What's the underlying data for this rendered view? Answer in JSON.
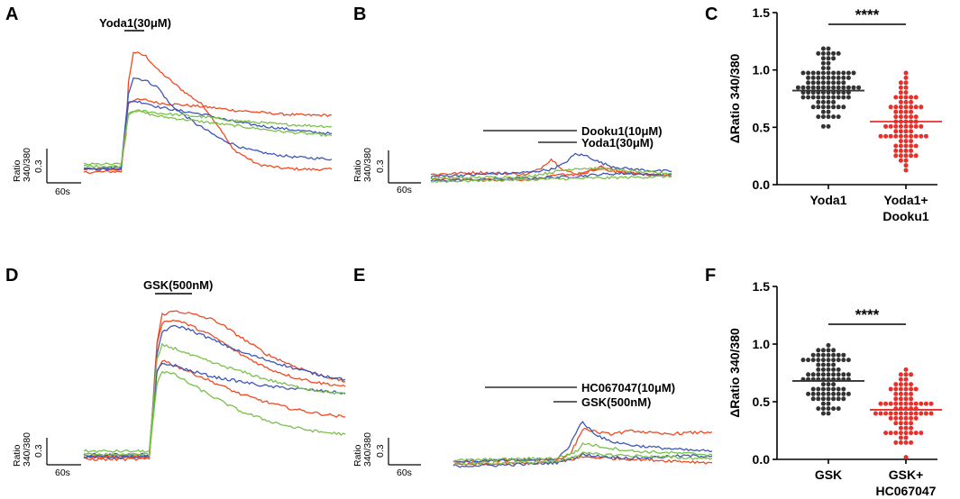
{
  "colors": {
    "orange": "#f04a23",
    "blue": "#3f57b6",
    "green": "#7cc04c",
    "dark": "#333333",
    "red": "#e8302a",
    "black": "#000000"
  },
  "panels": {
    "A": {
      "letter": "A",
      "drug": "Yoda1(30μM)",
      "scale_y_label_1": "Ratio",
      "scale_y_label_2": "340/380",
      "scale_value": "0.3",
      "scale_time": "60s"
    },
    "B": {
      "letter": "B",
      "drug_1": "Dooku1(10μM)",
      "drug_2": "Yoda1(30μM)",
      "scale_y_label_1": "Ratio",
      "scale_y_label_2": "340/380",
      "scale_value": "0.3",
      "scale_time": "60s"
    },
    "C": {
      "letter": "C"
    },
    "D": {
      "letter": "D",
      "drug": "GSK(500nM)",
      "scale_y_label_1": "Ratio",
      "scale_y_label_2": "340/380",
      "scale_value": "0.3",
      "scale_time": "60s"
    },
    "E": {
      "letter": "E",
      "drug_1": "HC067047(10μM)",
      "drug_2": "GSK(500nM)",
      "scale_y_label_1": "Ratio",
      "scale_y_label_2": "340/380",
      "scale_value": "0.3",
      "scale_time": "60s"
    },
    "F": {
      "letter": "F"
    }
  },
  "chart_data": [
    {
      "panel": "A",
      "type": "line",
      "title": "",
      "xlabel": "",
      "ylabel": "Ratio 340/380",
      "xlim": [
        0,
        100
      ],
      "ylim": [
        0,
        1.5
      ],
      "stimulus": "Yoda1(30μM)",
      "series": [
        {
          "name": "trace-orange-1",
          "color": "#f04a23",
          "x": [
            0,
            15,
            17,
            18,
            20,
            25,
            30,
            35,
            40,
            48,
            55,
            60,
            70,
            80,
            90,
            100
          ],
          "y": [
            0.15,
            0.15,
            0.5,
            1.0,
            1.3,
            1.26,
            1.12,
            1.02,
            0.92,
            0.78,
            0.55,
            0.35,
            0.2,
            0.16,
            0.15,
            0.15
          ]
        },
        {
          "name": "trace-orange-2",
          "color": "#f04a23",
          "x": [
            0,
            15,
            18,
            20,
            25,
            30,
            40,
            50,
            60,
            70,
            80,
            90,
            100
          ],
          "y": [
            0.12,
            0.13,
            0.8,
            0.83,
            0.83,
            0.8,
            0.78,
            0.76,
            0.73,
            0.71,
            0.69,
            0.68,
            0.68
          ]
        },
        {
          "name": "trace-blue-1",
          "color": "#3f57b6",
          "x": [
            0,
            15,
            18,
            20,
            25,
            30,
            35,
            45,
            55,
            65,
            75,
            85,
            100
          ],
          "y": [
            0.15,
            0.15,
            0.9,
            1.05,
            1.02,
            0.95,
            0.78,
            0.6,
            0.45,
            0.35,
            0.3,
            0.27,
            0.25
          ]
        },
        {
          "name": "trace-blue-2",
          "color": "#3f57b6",
          "x": [
            0,
            15,
            18,
            20,
            25,
            30,
            40,
            50,
            60,
            70,
            80,
            90,
            100
          ],
          "y": [
            0.16,
            0.17,
            0.8,
            0.82,
            0.8,
            0.76,
            0.72,
            0.68,
            0.62,
            0.58,
            0.55,
            0.52,
            0.5
          ]
        },
        {
          "name": "trace-green-1",
          "color": "#7cc04c",
          "x": [
            0,
            15,
            18,
            20,
            25,
            30,
            40,
            50,
            60,
            70,
            80,
            90,
            100
          ],
          "y": [
            0.18,
            0.18,
            0.7,
            0.73,
            0.7,
            0.67,
            0.64,
            0.61,
            0.58,
            0.55,
            0.52,
            0.5,
            0.48
          ]
        },
        {
          "name": "trace-green-2",
          "color": "#7cc04c",
          "x": [
            0,
            15,
            18,
            20,
            25,
            30,
            40,
            50,
            60,
            70,
            80,
            90,
            100
          ],
          "y": [
            0.2,
            0.2,
            0.68,
            0.72,
            0.72,
            0.7,
            0.68,
            0.66,
            0.63,
            0.61,
            0.59,
            0.58,
            0.57
          ]
        }
      ]
    },
    {
      "panel": "B",
      "type": "line",
      "title": "",
      "xlabel": "",
      "ylabel": "Ratio 340/380",
      "xlim": [
        0,
        100
      ],
      "ylim": [
        0,
        1.5
      ],
      "stimuli": [
        "Dooku1(10μM)",
        "Yoda1(30μM)"
      ],
      "series": [
        {
          "name": "trace-orange-1",
          "color": "#f04a23",
          "x": [
            0,
            20,
            40,
            45,
            50,
            55,
            60,
            65,
            70,
            80,
            90,
            100
          ],
          "y": [
            0.1,
            0.12,
            0.1,
            0.15,
            0.25,
            0.15,
            0.1,
            0.12,
            0.18,
            0.12,
            0.1,
            0.1
          ]
        },
        {
          "name": "trace-orange-2",
          "color": "#f04a23",
          "x": [
            0,
            20,
            40,
            45,
            50,
            55,
            60,
            70,
            80,
            90,
            100
          ],
          "y": [
            0.05,
            0.05,
            0.05,
            0.06,
            0.08,
            0.1,
            0.1,
            0.15,
            0.12,
            0.1,
            0.08
          ]
        },
        {
          "name": "trace-blue-1",
          "color": "#3f57b6",
          "x": [
            0,
            20,
            40,
            50,
            55,
            60,
            65,
            70,
            75,
            80,
            90,
            100
          ],
          "y": [
            0.08,
            0.1,
            0.12,
            0.15,
            0.2,
            0.3,
            0.28,
            0.22,
            0.18,
            0.16,
            0.14,
            0.13
          ]
        },
        {
          "name": "trace-blue-2",
          "color": "#3f57b6",
          "x": [
            0,
            20,
            40,
            60,
            70,
            80,
            90,
            100
          ],
          "y": [
            0.04,
            0.05,
            0.06,
            0.08,
            0.1,
            0.11,
            0.1,
            0.1
          ]
        },
        {
          "name": "trace-green-1",
          "color": "#7cc04c",
          "x": [
            0,
            20,
            40,
            50,
            60,
            70,
            80,
            90,
            100
          ],
          "y": [
            0.06,
            0.07,
            0.08,
            0.12,
            0.16,
            0.16,
            0.14,
            0.12,
            0.11
          ]
        },
        {
          "name": "trace-green-2",
          "color": "#7cc04c",
          "x": [
            0,
            20,
            40,
            60,
            80,
            100
          ],
          "y": [
            0.03,
            0.04,
            0.05,
            0.06,
            0.07,
            0.08
          ]
        }
      ]
    },
    {
      "panel": "C",
      "type": "scatter",
      "title": "",
      "xlabel": "",
      "ylabel": "ΔRatio 340/380",
      "ylim": [
        0.0,
        1.5
      ],
      "yticks": [
        "0.0",
        "0.5",
        "1.0",
        "1.5"
      ],
      "categories": [
        "Yoda1",
        "Yoda1+ Dooku1"
      ],
      "category_lines": [
        [
          "Yoda1"
        ],
        [
          "Yoda1+",
          "Dooku1"
        ]
      ],
      "group_colors": [
        "#333333",
        "#e8302a"
      ],
      "means": [
        0.82,
        0.55
      ],
      "n": [
        95,
        80
      ],
      "ranges": [
        [
          0.52,
          1.2
        ],
        [
          0.12,
          0.98
        ]
      ],
      "significance": "****"
    },
    {
      "panel": "D",
      "type": "line",
      "title": "",
      "xlabel": "",
      "ylabel": "Ratio 340/380",
      "xlim": [
        0,
        100
      ],
      "ylim": [
        0,
        1.5
      ],
      "stimulus": "GSK(500nM)",
      "series": [
        {
          "name": "trace-orange-1",
          "color": "#f04a23",
          "x": [
            0,
            25,
            27,
            28,
            30,
            35,
            40,
            50,
            60,
            70,
            80,
            90,
            100
          ],
          "y": [
            0.1,
            0.1,
            0.6,
            1.1,
            1.35,
            1.38,
            1.36,
            1.3,
            1.15,
            1.0,
            0.9,
            0.82,
            0.76
          ]
        },
        {
          "name": "trace-orange-2",
          "color": "#f04a23",
          "x": [
            0,
            25,
            28,
            30,
            35,
            40,
            50,
            60,
            70,
            80,
            90,
            100
          ],
          "y": [
            0.1,
            0.1,
            1.1,
            1.28,
            1.3,
            1.26,
            1.15,
            1.0,
            0.88,
            0.8,
            0.75,
            0.72
          ]
        },
        {
          "name": "trace-orange-3",
          "color": "#f04a23",
          "x": [
            0,
            25,
            28,
            30,
            35,
            40,
            50,
            60,
            70,
            80,
            90,
            100
          ],
          "y": [
            0.08,
            0.08,
            0.85,
            0.95,
            0.9,
            0.85,
            0.75,
            0.65,
            0.58,
            0.52,
            0.48,
            0.45
          ]
        },
        {
          "name": "trace-blue-1",
          "color": "#3f57b6",
          "x": [
            0,
            25,
            28,
            30,
            35,
            40,
            50,
            60,
            70,
            80,
            90,
            100
          ],
          "y": [
            0.12,
            0.12,
            1.0,
            1.2,
            1.25,
            1.22,
            1.12,
            1.02,
            0.95,
            0.88,
            0.82,
            0.78
          ]
        },
        {
          "name": "trace-blue-2",
          "color": "#3f57b6",
          "x": [
            0,
            25,
            28,
            30,
            35,
            40,
            50,
            60,
            70,
            80,
            90,
            100
          ],
          "y": [
            0.1,
            0.1,
            0.85,
            0.92,
            0.9,
            0.86,
            0.8,
            0.76,
            0.72,
            0.7,
            0.68,
            0.66
          ]
        },
        {
          "name": "trace-green-1",
          "color": "#7cc04c",
          "x": [
            0,
            25,
            28,
            30,
            35,
            40,
            50,
            60,
            70,
            80,
            90,
            100
          ],
          "y": [
            0.15,
            0.15,
            0.95,
            1.08,
            1.05,
            1.0,
            0.92,
            0.85,
            0.78,
            0.72,
            0.68,
            0.65
          ]
        },
        {
          "name": "trace-green-2",
          "color": "#7cc04c",
          "x": [
            0,
            25,
            28,
            30,
            35,
            40,
            50,
            60,
            70,
            80,
            90,
            100
          ],
          "y": [
            0.12,
            0.12,
            0.75,
            0.85,
            0.82,
            0.75,
            0.62,
            0.5,
            0.42,
            0.36,
            0.32,
            0.3
          ]
        }
      ]
    },
    {
      "panel": "E",
      "type": "line",
      "title": "",
      "xlabel": "",
      "ylabel": "Ratio 340/380",
      "xlim": [
        0,
        100
      ],
      "ylim": [
        0,
        1.5
      ],
      "stimuli": [
        "HC067047(10μM)",
        "GSK(500nM)"
      ],
      "series": [
        {
          "name": "trace-orange-1",
          "color": "#f04a23",
          "x": [
            0,
            20,
            40,
            45,
            48,
            50,
            55,
            60,
            70,
            80,
            90,
            100
          ],
          "y": [
            0.05,
            0.07,
            0.08,
            0.12,
            0.25,
            0.35,
            0.32,
            0.3,
            0.33,
            0.3,
            0.31,
            0.32
          ]
        },
        {
          "name": "trace-orange-2",
          "color": "#f04a23",
          "x": [
            0,
            20,
            40,
            50,
            60,
            70,
            80,
            90,
            100
          ],
          "y": [
            0.03,
            0.04,
            0.05,
            0.1,
            0.09,
            0.08,
            0.07,
            0.06,
            0.05
          ]
        },
        {
          "name": "trace-blue-1",
          "color": "#3f57b6",
          "x": [
            0,
            20,
            40,
            45,
            48,
            50,
            55,
            60,
            70,
            80,
            90,
            100
          ],
          "y": [
            0.06,
            0.07,
            0.08,
            0.2,
            0.35,
            0.4,
            0.3,
            0.24,
            0.2,
            0.18,
            0.16,
            0.15
          ]
        },
        {
          "name": "trace-blue-2",
          "color": "#3f57b6",
          "x": [
            0,
            20,
            40,
            50,
            60,
            70,
            80,
            90,
            100
          ],
          "y": [
            0.02,
            0.03,
            0.05,
            0.12,
            0.1,
            0.09,
            0.1,
            0.11,
            0.11
          ]
        },
        {
          "name": "trace-green-1",
          "color": "#7cc04c",
          "x": [
            0,
            20,
            40,
            48,
            50,
            55,
            60,
            70,
            80,
            90,
            100
          ],
          "y": [
            0.07,
            0.08,
            0.09,
            0.15,
            0.22,
            0.2,
            0.18,
            0.15,
            0.14,
            0.13,
            0.12
          ]
        },
        {
          "name": "trace-green-2",
          "color": "#7cc04c",
          "x": [
            0,
            20,
            40,
            50,
            60,
            70,
            80,
            90,
            100
          ],
          "y": [
            0.04,
            0.05,
            0.06,
            0.13,
            0.12,
            0.11,
            0.1,
            0.09,
            0.09
          ]
        }
      ]
    },
    {
      "panel": "F",
      "type": "scatter",
      "title": "",
      "xlabel": "",
      "ylabel": "ΔRatio 340/380",
      "ylim": [
        0.0,
        1.5
      ],
      "yticks": [
        "0.0",
        "0.5",
        "1.0",
        "1.5"
      ],
      "categories": [
        "GSK",
        "GSK+ HC067047"
      ],
      "category_lines": [
        [
          "GSK"
        ],
        [
          "GSK+",
          "HC067047"
        ]
      ],
      "group_colors": [
        "#333333",
        "#e8302a"
      ],
      "means": [
        0.68,
        0.43
      ],
      "n": [
        85,
        80
      ],
      "ranges": [
        [
          0.38,
          1.0
        ],
        [
          0.02,
          0.8
        ]
      ],
      "significance": "****"
    }
  ]
}
